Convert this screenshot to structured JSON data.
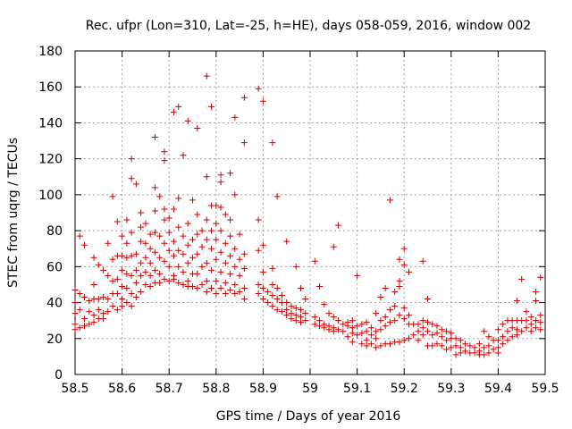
{
  "chart_data": {
    "type": "scatter",
    "title": "Rec. ufpr (Lon=310, Lat=-25, h=HE), days 058-059, 2016, window 002",
    "xlabel": "GPS time / Days of year 2016",
    "ylabel": "STEC from uqrg / TECUs",
    "xlim": [
      58.5,
      59.5
    ],
    "ylim": [
      0,
      180
    ],
    "x_ticks": [
      "58.5",
      "58.6",
      "58.7",
      "58.8",
      "58.9",
      "59",
      "59.1",
      "59.2",
      "59.3",
      "59.4",
      "59.5"
    ],
    "y_ticks": [
      "0",
      "20",
      "40",
      "60",
      "80",
      "100",
      "120",
      "140",
      "160",
      "180"
    ],
    "grid": true,
    "legend": "none",
    "marker": "+",
    "color": "#cc0000",
    "points": [
      [
        58.5,
        47
      ],
      [
        58.5,
        40
      ],
      [
        58.5,
        34
      ],
      [
        58.5,
        28
      ],
      [
        58.5,
        25
      ],
      [
        58.51,
        77
      ],
      [
        58.51,
        45
      ],
      [
        58.51,
        36
      ],
      [
        58.51,
        26
      ],
      [
        58.52,
        72
      ],
      [
        58.52,
        43
      ],
      [
        58.52,
        31
      ],
      [
        58.52,
        27
      ],
      [
        58.53,
        41
      ],
      [
        58.53,
        35
      ],
      [
        58.53,
        28
      ],
      [
        58.54,
        65
      ],
      [
        58.54,
        50
      ],
      [
        58.54,
        42
      ],
      [
        58.54,
        33
      ],
      [
        58.54,
        29
      ],
      [
        58.55,
        61
      ],
      [
        58.55,
        42
      ],
      [
        58.55,
        36
      ],
      [
        58.55,
        31
      ],
      [
        58.56,
        58
      ],
      [
        58.56,
        43
      ],
      [
        58.56,
        34
      ],
      [
        58.56,
        31
      ],
      [
        58.57,
        73
      ],
      [
        58.57,
        55
      ],
      [
        58.57,
        42
      ],
      [
        58.57,
        35
      ],
      [
        58.58,
        99
      ],
      [
        58.58,
        64
      ],
      [
        58.58,
        52
      ],
      [
        58.58,
        45
      ],
      [
        58.58,
        38
      ],
      [
        58.59,
        85
      ],
      [
        58.59,
        66
      ],
      [
        58.59,
        53
      ],
      [
        58.59,
        45
      ],
      [
        58.59,
        36
      ],
      [
        58.6,
        77
      ],
      [
        58.6,
        66
      ],
      [
        58.6,
        58
      ],
      [
        58.6,
        49
      ],
      [
        58.6,
        42
      ],
      [
        58.6,
        38
      ],
      [
        58.61,
        86
      ],
      [
        58.61,
        73
      ],
      [
        58.61,
        65
      ],
      [
        58.61,
        56
      ],
      [
        58.61,
        48
      ],
      [
        58.61,
        40
      ],
      [
        58.62,
        120
      ],
      [
        58.62,
        109
      ],
      [
        58.62,
        79
      ],
      [
        58.62,
        66
      ],
      [
        58.62,
        55
      ],
      [
        58.62,
        45
      ],
      [
        58.62,
        38
      ],
      [
        58.63,
        106
      ],
      [
        58.63,
        67
      ],
      [
        58.63,
        58
      ],
      [
        58.63,
        51
      ],
      [
        58.63,
        43
      ],
      [
        58.64,
        90
      ],
      [
        58.64,
        82
      ],
      [
        58.64,
        74
      ],
      [
        58.64,
        62
      ],
      [
        58.64,
        55
      ],
      [
        58.64,
        46
      ],
      [
        58.65,
        84
      ],
      [
        58.65,
        73
      ],
      [
        58.65,
        65
      ],
      [
        58.65,
        57
      ],
      [
        58.65,
        50
      ],
      [
        58.66,
        78
      ],
      [
        58.66,
        70
      ],
      [
        58.66,
        62
      ],
      [
        58.66,
        55
      ],
      [
        58.66,
        49
      ],
      [
        58.67,
        132
      ],
      [
        58.67,
        104
      ],
      [
        58.67,
        91
      ],
      [
        58.67,
        79
      ],
      [
        58.67,
        68
      ],
      [
        58.67,
        58
      ],
      [
        58.67,
        51
      ],
      [
        58.68,
        99
      ],
      [
        58.68,
        77
      ],
      [
        58.68,
        65
      ],
      [
        58.68,
        56
      ],
      [
        58.68,
        51
      ],
      [
        58.69,
        124
      ],
      [
        58.69,
        119
      ],
      [
        58.69,
        92
      ],
      [
        58.69,
        86
      ],
      [
        58.69,
        73
      ],
      [
        58.69,
        63
      ],
      [
        58.69,
        53
      ],
      [
        58.7,
        87
      ],
      [
        58.7,
        79
      ],
      [
        58.7,
        69
      ],
      [
        58.7,
        60
      ],
      [
        58.7,
        52
      ],
      [
        58.71,
        146
      ],
      [
        58.71,
        92
      ],
      [
        58.71,
        74
      ],
      [
        58.71,
        66
      ],
      [
        58.71,
        55
      ],
      [
        58.71,
        53
      ],
      [
        58.72,
        149
      ],
      [
        58.72,
        98
      ],
      [
        58.72,
        82
      ],
      [
        58.72,
        69
      ],
      [
        58.72,
        60
      ],
      [
        58.72,
        51
      ],
      [
        58.73,
        122
      ],
      [
        58.73,
        77
      ],
      [
        58.73,
        67
      ],
      [
        58.73,
        57
      ],
      [
        58.73,
        50
      ],
      [
        58.74,
        141
      ],
      [
        58.74,
        84
      ],
      [
        58.74,
        72
      ],
      [
        58.74,
        62
      ],
      [
        58.74,
        52
      ],
      [
        58.74,
        49
      ],
      [
        58.75,
        97
      ],
      [
        58.75,
        75
      ],
      [
        58.75,
        65
      ],
      [
        58.75,
        56
      ],
      [
        58.75,
        49
      ],
      [
        58.76,
        137
      ],
      [
        58.76,
        89
      ],
      [
        58.76,
        78
      ],
      [
        58.76,
        67
      ],
      [
        58.76,
        56
      ],
      [
        58.76,
        48
      ],
      [
        58.77,
        80
      ],
      [
        58.77,
        71
      ],
      [
        58.77,
        60
      ],
      [
        58.77,
        50
      ],
      [
        58.78,
        166
      ],
      [
        58.78,
        110
      ],
      [
        58.78,
        86
      ],
      [
        58.78,
        75
      ],
      [
        58.78,
        62
      ],
      [
        58.78,
        52
      ],
      [
        58.78,
        46
      ],
      [
        58.79,
        149
      ],
      [
        58.79,
        94
      ],
      [
        58.79,
        80
      ],
      [
        58.79,
        70
      ],
      [
        58.79,
        58
      ],
      [
        58.79,
        48
      ],
      [
        58.8,
        94
      ],
      [
        58.8,
        84
      ],
      [
        58.8,
        75
      ],
      [
        58.8,
        64
      ],
      [
        58.8,
        52
      ],
      [
        58.8,
        45
      ],
      [
        58.81,
        111
      ],
      [
        58.81,
        107
      ],
      [
        58.81,
        93
      ],
      [
        58.81,
        80
      ],
      [
        58.81,
        68
      ],
      [
        58.81,
        57
      ],
      [
        58.81,
        48
      ],
      [
        58.82,
        89
      ],
      [
        58.82,
        73
      ],
      [
        58.82,
        62
      ],
      [
        58.82,
        51
      ],
      [
        58.82,
        45
      ],
      [
        58.83,
        112
      ],
      [
        58.83,
        86
      ],
      [
        58.83,
        77
      ],
      [
        58.83,
        66
      ],
      [
        58.83,
        56
      ],
      [
        58.83,
        47
      ],
      [
        58.84,
        143
      ],
      [
        58.84,
        100
      ],
      [
        58.84,
        70
      ],
      [
        58.84,
        60
      ],
      [
        58.84,
        50
      ],
      [
        58.84,
        45
      ],
      [
        58.85,
        78
      ],
      [
        58.85,
        64
      ],
      [
        58.85,
        55
      ],
      [
        58.85,
        46
      ],
      [
        58.86,
        154
      ],
      [
        58.86,
        129
      ],
      [
        58.86,
        67
      ],
      [
        58.86,
        59
      ],
      [
        58.86,
        48
      ],
      [
        58.86,
        42
      ],
      [
        58.89,
        159
      ],
      [
        58.89,
        86
      ],
      [
        58.89,
        69
      ],
      [
        58.89,
        50
      ],
      [
        58.89,
        45
      ],
      [
        58.9,
        152
      ],
      [
        58.9,
        72
      ],
      [
        58.9,
        57
      ],
      [
        58.9,
        48
      ],
      [
        58.9,
        42
      ],
      [
        58.91,
        46
      ],
      [
        58.91,
        40
      ],
      [
        58.92,
        129
      ],
      [
        58.92,
        59
      ],
      [
        58.92,
        50
      ],
      [
        58.92,
        44
      ],
      [
        58.92,
        38
      ],
      [
        58.93,
        99
      ],
      [
        58.93,
        48
      ],
      [
        58.93,
        42
      ],
      [
        58.93,
        36
      ],
      [
        58.94,
        44
      ],
      [
        58.94,
        40
      ],
      [
        58.94,
        35
      ],
      [
        58.95,
        74
      ],
      [
        58.95,
        40
      ],
      [
        58.95,
        36
      ],
      [
        58.95,
        33
      ],
      [
        58.96,
        38
      ],
      [
        58.96,
        34
      ],
      [
        58.96,
        31
      ],
      [
        58.97,
        60
      ],
      [
        58.97,
        37
      ],
      [
        58.97,
        33
      ],
      [
        58.97,
        30
      ],
      [
        58.98,
        48
      ],
      [
        58.98,
        36
      ],
      [
        58.98,
        32
      ],
      [
        58.98,
        29
      ],
      [
        58.99,
        42
      ],
      [
        58.99,
        34
      ],
      [
        58.99,
        30
      ],
      [
        59.01,
        63
      ],
      [
        59.01,
        32
      ],
      [
        59.01,
        28
      ],
      [
        59.02,
        49
      ],
      [
        59.02,
        30
      ],
      [
        59.02,
        27
      ],
      [
        59.03,
        39
      ],
      [
        59.03,
        28
      ],
      [
        59.03,
        26
      ],
      [
        59.04,
        34
      ],
      [
        59.04,
        27
      ],
      [
        59.04,
        25
      ],
      [
        59.05,
        71
      ],
      [
        59.05,
        32
      ],
      [
        59.05,
        26
      ],
      [
        59.05,
        24
      ],
      [
        59.06,
        83
      ],
      [
        59.06,
        30
      ],
      [
        59.06,
        25
      ],
      [
        59.07,
        28
      ],
      [
        59.07,
        24
      ],
      [
        59.08,
        29
      ],
      [
        59.08,
        27
      ],
      [
        59.08,
        21
      ],
      [
        59.09,
        30
      ],
      [
        59.09,
        26
      ],
      [
        59.09,
        23
      ],
      [
        59.09,
        18
      ],
      [
        59.1,
        55
      ],
      [
        59.1,
        27
      ],
      [
        59.1,
        22
      ],
      [
        59.11,
        28
      ],
      [
        59.11,
        23
      ],
      [
        59.11,
        17
      ],
      [
        59.12,
        29
      ],
      [
        59.12,
        24
      ],
      [
        59.12,
        19
      ],
      [
        59.12,
        16
      ],
      [
        59.13,
        26
      ],
      [
        59.13,
        22
      ],
      [
        59.13,
        17
      ],
      [
        59.14,
        34
      ],
      [
        59.14,
        24
      ],
      [
        59.14,
        20
      ],
      [
        59.14,
        15
      ],
      [
        59.15,
        43
      ],
      [
        59.15,
        30
      ],
      [
        59.15,
        25
      ],
      [
        59.15,
        16
      ],
      [
        59.16,
        48
      ],
      [
        59.16,
        32
      ],
      [
        59.16,
        27
      ],
      [
        59.16,
        17
      ],
      [
        59.17,
        97
      ],
      [
        59.17,
        36
      ],
      [
        59.17,
        29
      ],
      [
        59.17,
        17
      ],
      [
        59.18,
        46
      ],
      [
        59.18,
        38
      ],
      [
        59.18,
        30
      ],
      [
        59.18,
        18
      ],
      [
        59.19,
        64
      ],
      [
        59.19,
        52
      ],
      [
        59.19,
        49
      ],
      [
        59.19,
        33
      ],
      [
        59.19,
        18
      ],
      [
        59.2,
        70
      ],
      [
        59.2,
        61
      ],
      [
        59.2,
        37
      ],
      [
        59.2,
        31
      ],
      [
        59.2,
        19
      ],
      [
        59.21,
        57
      ],
      [
        59.21,
        33
      ],
      [
        59.21,
        28
      ],
      [
        59.21,
        20
      ],
      [
        59.22,
        28
      ],
      [
        59.22,
        22
      ],
      [
        59.23,
        28
      ],
      [
        59.23,
        24
      ],
      [
        59.23,
        19
      ],
      [
        59.24,
        63
      ],
      [
        59.24,
        30
      ],
      [
        59.24,
        26
      ],
      [
        59.24,
        22
      ],
      [
        59.25,
        42
      ],
      [
        59.25,
        29
      ],
      [
        59.25,
        24
      ],
      [
        59.25,
        16
      ],
      [
        59.26,
        28
      ],
      [
        59.26,
        22
      ],
      [
        59.26,
        16
      ],
      [
        59.27,
        27
      ],
      [
        59.27,
        23
      ],
      [
        59.27,
        17
      ],
      [
        59.28,
        25
      ],
      [
        59.28,
        21
      ],
      [
        59.28,
        16
      ],
      [
        59.29,
        24
      ],
      [
        59.29,
        19
      ],
      [
        59.29,
        14
      ],
      [
        59.3,
        23
      ],
      [
        59.3,
        20
      ],
      [
        59.3,
        15
      ],
      [
        59.31,
        20
      ],
      [
        59.31,
        16
      ],
      [
        59.31,
        11
      ],
      [
        59.32,
        19
      ],
      [
        59.32,
        15
      ],
      [
        59.32,
        12
      ],
      [
        59.33,
        17
      ],
      [
        59.33,
        13
      ],
      [
        59.34,
        16
      ],
      [
        59.34,
        12
      ],
      [
        59.35,
        15
      ],
      [
        59.35,
        12
      ],
      [
        59.36,
        17
      ],
      [
        59.36,
        13
      ],
      [
        59.36,
        11
      ],
      [
        59.37,
        24
      ],
      [
        59.37,
        15
      ],
      [
        59.37,
        11
      ],
      [
        59.38,
        21
      ],
      [
        59.38,
        16
      ],
      [
        59.38,
        12
      ],
      [
        59.39,
        19
      ],
      [
        59.39,
        14
      ],
      [
        59.4,
        25
      ],
      [
        59.4,
        19
      ],
      [
        59.4,
        15
      ],
      [
        59.4,
        12
      ],
      [
        59.41,
        28
      ],
      [
        59.41,
        21
      ],
      [
        59.41,
        17
      ],
      [
        59.42,
        30
      ],
      [
        59.42,
        24
      ],
      [
        59.42,
        19
      ],
      [
        59.43,
        30
      ],
      [
        59.43,
        26
      ],
      [
        59.43,
        21
      ],
      [
        59.44,
        41
      ],
      [
        59.44,
        30
      ],
      [
        59.44,
        25
      ],
      [
        59.44,
        22
      ],
      [
        59.45,
        53
      ],
      [
        59.45,
        30
      ],
      [
        59.45,
        24
      ],
      [
        59.46,
        35
      ],
      [
        59.46,
        30
      ],
      [
        59.46,
        26
      ],
      [
        59.47,
        32
      ],
      [
        59.47,
        28
      ],
      [
        59.47,
        24
      ],
      [
        59.48,
        46
      ],
      [
        59.48,
        41
      ],
      [
        59.48,
        30
      ],
      [
        59.48,
        26
      ],
      [
        59.49,
        54
      ],
      [
        59.49,
        33
      ],
      [
        59.49,
        29
      ],
      [
        59.49,
        25
      ]
    ]
  }
}
